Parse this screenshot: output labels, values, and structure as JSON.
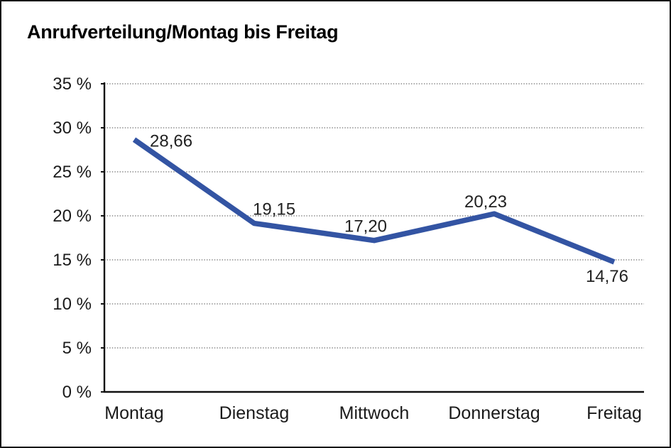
{
  "window": {
    "background": "#ffffff",
    "border_color": "#161616"
  },
  "chart_data": {
    "type": "line",
    "title": "Anrufverteilung/Montag bis Freitag",
    "categories": [
      "Montag",
      "Dienstag",
      "Mittwoch",
      "Donnerstag",
      "Freitag"
    ],
    "series": [
      {
        "name": "Anrufverteilung",
        "values": [
          28.66,
          19.15,
          17.2,
          20.23,
          14.76
        ]
      }
    ],
    "value_labels": [
      "28,66",
      "19,15",
      "17,20",
      "20,23",
      "14,76"
    ],
    "y_ticks": [
      {
        "value": 35,
        "label": "35 %"
      },
      {
        "value": 30,
        "label": "30 %"
      },
      {
        "value": 25,
        "label": "25 %"
      },
      {
        "value": 20,
        "label": "20 %"
      },
      {
        "value": 15,
        "label": "15 %"
      },
      {
        "value": 10,
        "label": "10 %"
      },
      {
        "value": 5,
        "label": "5 %"
      },
      {
        "value": 0,
        "label": "0 %"
      }
    ],
    "ylim": [
      0,
      35
    ],
    "xlabel": "",
    "ylabel": "",
    "grid": "horizontal-dotted",
    "legend": "none",
    "colors": {
      "line": "#3354A3",
      "gridline": "#6e6e6e",
      "axis": "#111111",
      "tick_text": "#1a1a1a",
      "value_text": "#212121",
      "title_text": "#000000"
    }
  }
}
